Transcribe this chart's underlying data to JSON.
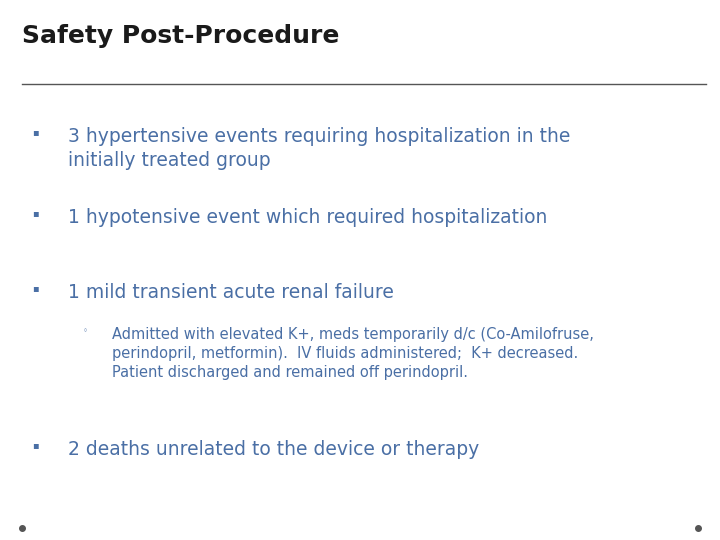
{
  "title": "Safety Post-Procedure",
  "title_color": "#1a1a1a",
  "title_fontsize": 18,
  "title_bold": true,
  "line_color": "#555555",
  "background_color": "#ffffff",
  "bullet_color": "#4a6fa5",
  "bullet_marker": "▪",
  "sub_bullet_marker": "◦",
  "bullets": [
    {
      "level": 0,
      "text": "3 hypertensive events requiring hospitalization in the\ninitially treated group",
      "fontsize": 13.5
    },
    {
      "level": 0,
      "text": "1 hypotensive event which required hospitalization",
      "fontsize": 13.5
    },
    {
      "level": 0,
      "text": "1 mild transient acute renal failure",
      "fontsize": 13.5
    },
    {
      "level": 1,
      "text": "Admitted with elevated K+, meds temporarily d/c (Co-Amilofruse,\nperindopril, metformin).  IV fluids administered;  K+ decreased.\nPatient discharged and remained off perindopril.",
      "fontsize": 10.5
    },
    {
      "level": 0,
      "text": "2 deaths unrelated to the device or therapy",
      "fontsize": 13.5
    }
  ],
  "footer_dot_color": "#555555"
}
